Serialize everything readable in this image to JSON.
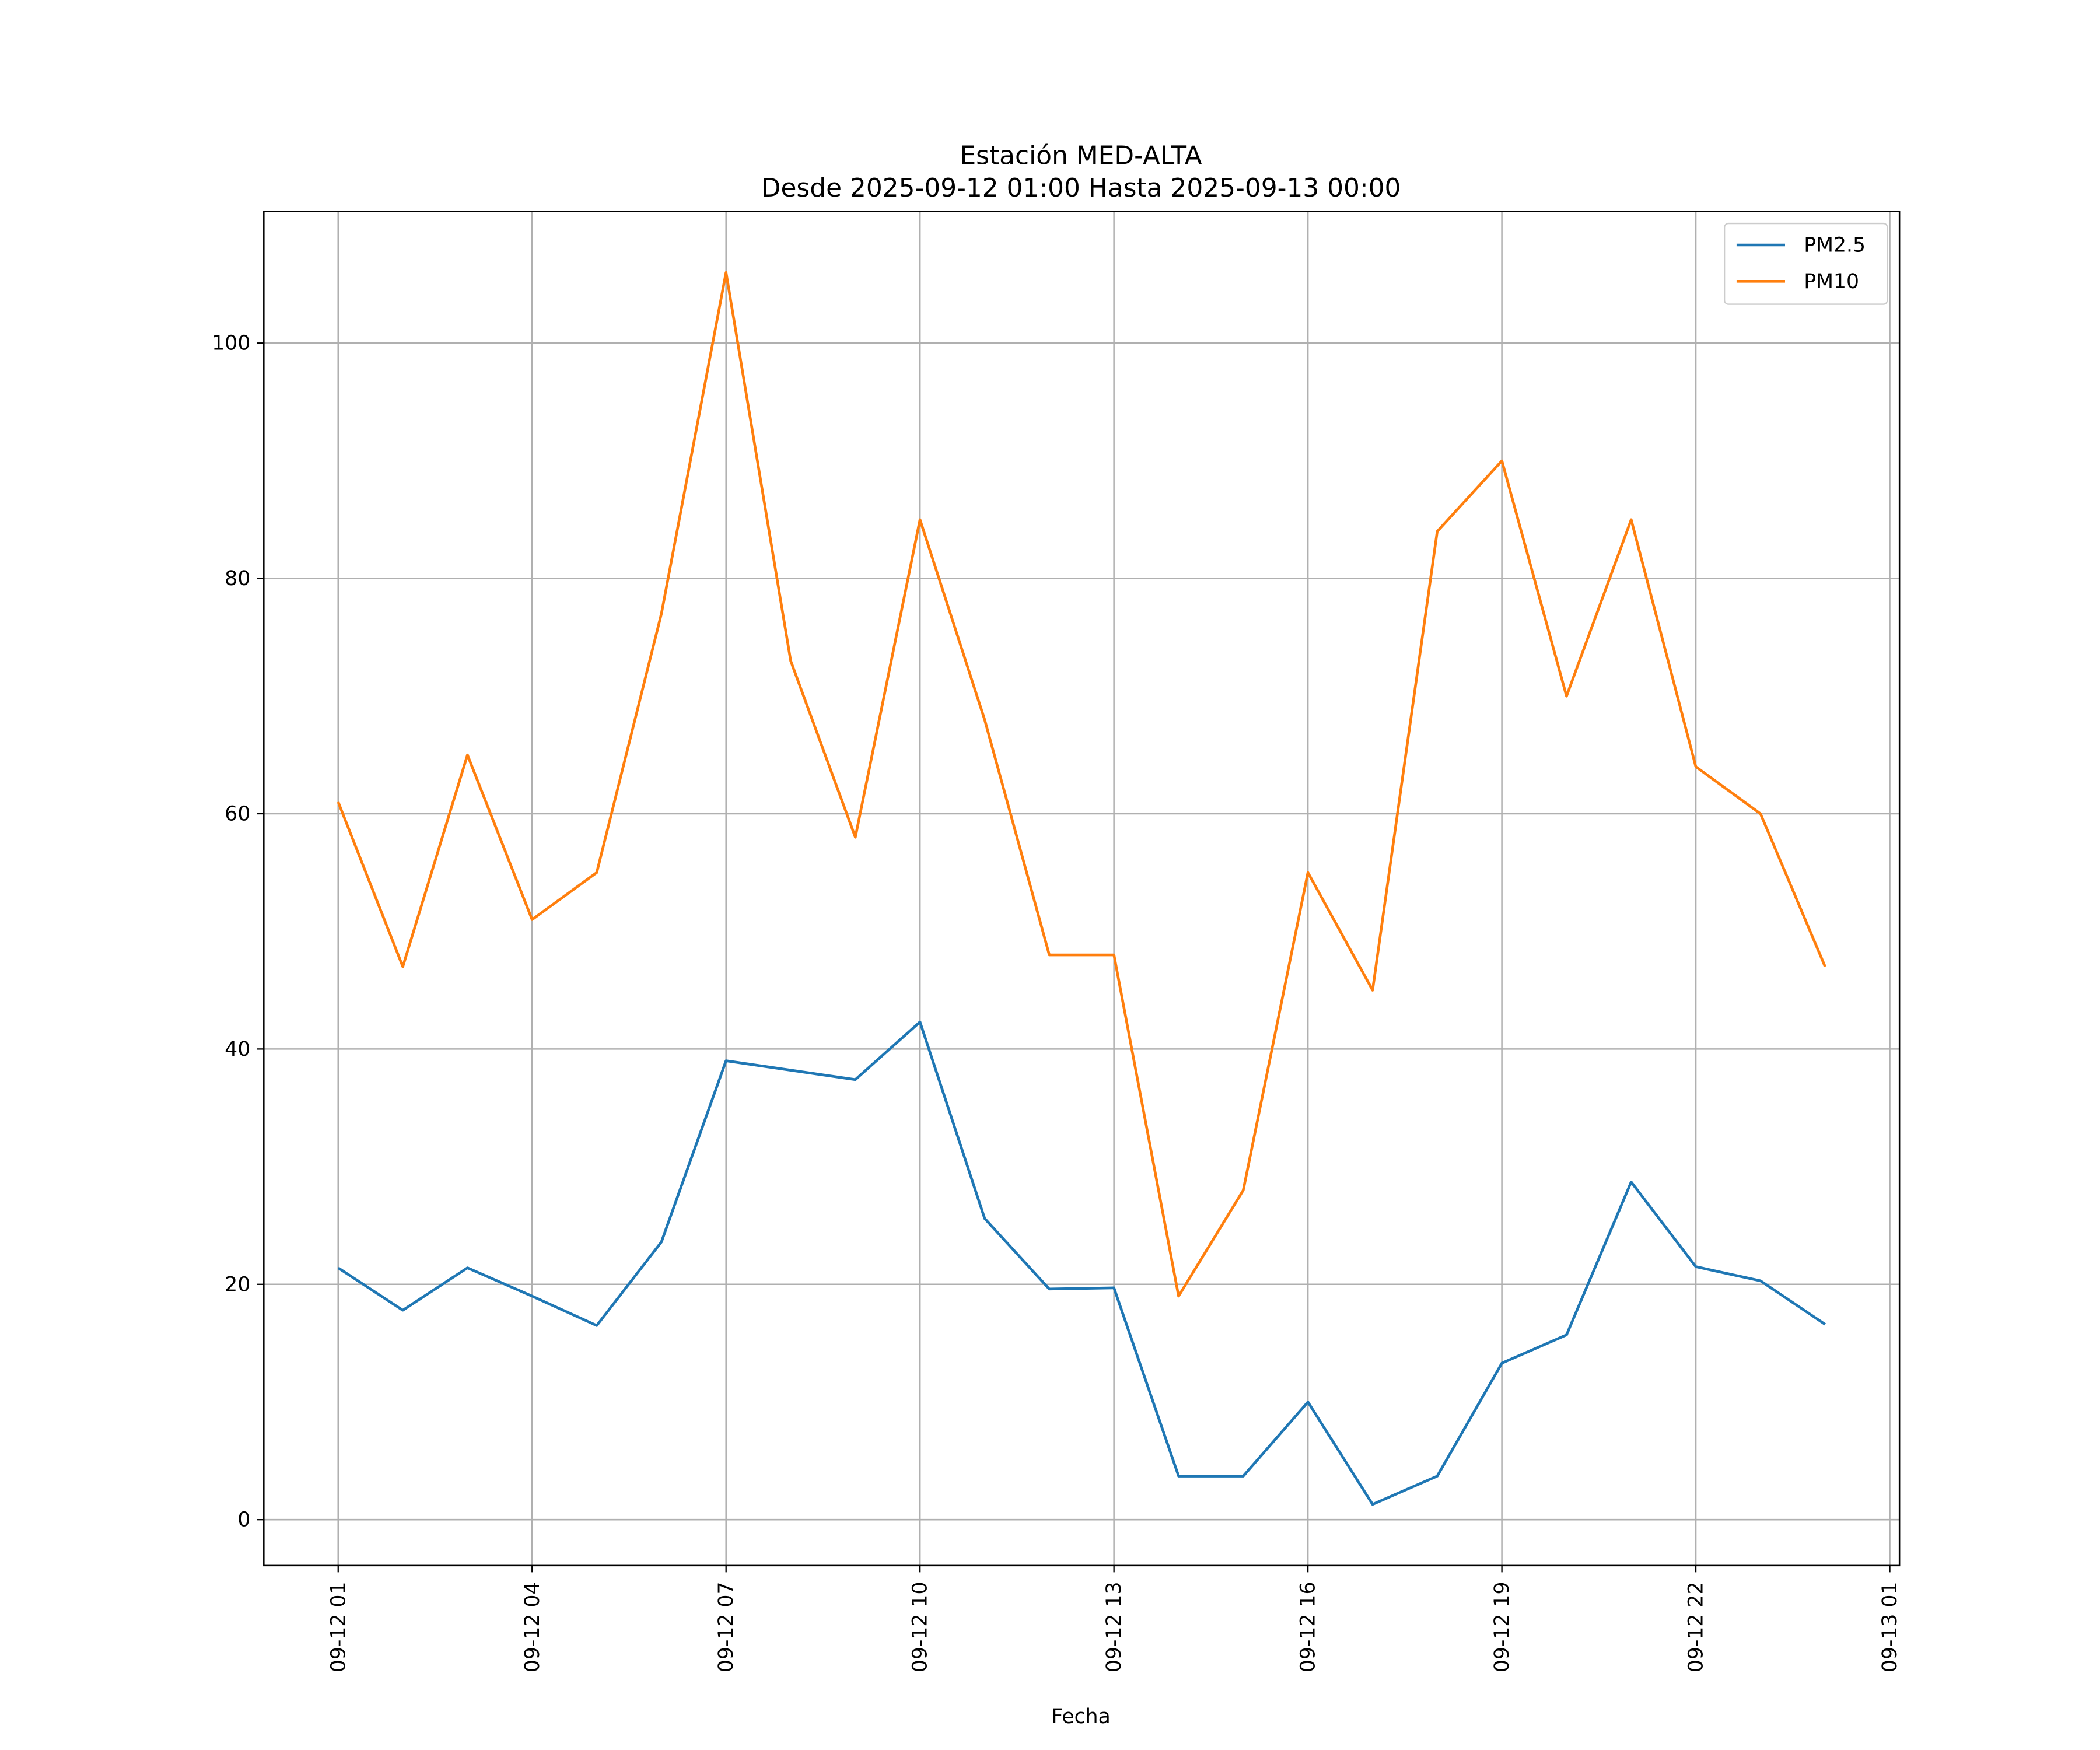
{
  "chart_data": {
    "type": "line",
    "title": "Estación MED-ALTA",
    "subtitle": "Desde 2025-09-12 01:00 Hasta 2025-09-13 00:00",
    "xlabel": "Fecha",
    "ylabel": "",
    "x_unit": "hours since 2025-09-12 00:00",
    "x": [
      1,
      2,
      3,
      4,
      5,
      6,
      7,
      8,
      9,
      10,
      11,
      12,
      13,
      14,
      15,
      16,
      17,
      18,
      19,
      20,
      21,
      22,
      23,
      24
    ],
    "series": [
      {
        "name": "PM2.5",
        "color": "#1f77b4",
        "values": [
          21.4,
          17.8,
          21.4,
          19.0,
          16.5,
          23.6,
          39.0,
          38.2,
          37.4,
          42.3,
          25.6,
          19.6,
          19.7,
          3.7,
          3.7,
          10.0,
          1.3,
          3.7,
          13.3,
          15.7,
          28.7,
          21.5,
          20.3,
          16.6
        ]
      },
      {
        "name": "PM10",
        "color": "#ff7f0e",
        "values": [
          61,
          47,
          65,
          51,
          55,
          77,
          106,
          73,
          58,
          85,
          68,
          48,
          48,
          19,
          28,
          55,
          45,
          84,
          90,
          70,
          85,
          64,
          60,
          47
        ]
      }
    ],
    "xlim": [
      -0.15,
      25.15
    ],
    "ylim": [
      -3.9,
      111.2
    ],
    "xticks": [
      1,
      4,
      7,
      10,
      13,
      16,
      19,
      22,
      25
    ],
    "xtick_labels": [
      "09-12 01",
      "09-12 04",
      "09-12 07",
      "09-12 10",
      "09-12 13",
      "09-12 16",
      "09-12 19",
      "09-12 22",
      "09-13 01"
    ],
    "yticks": [
      0,
      20,
      40,
      60,
      80,
      100
    ],
    "ytick_labels": [
      "0",
      "20",
      "40",
      "60",
      "80",
      "100"
    ],
    "grid": true,
    "legend": "upper-right"
  }
}
